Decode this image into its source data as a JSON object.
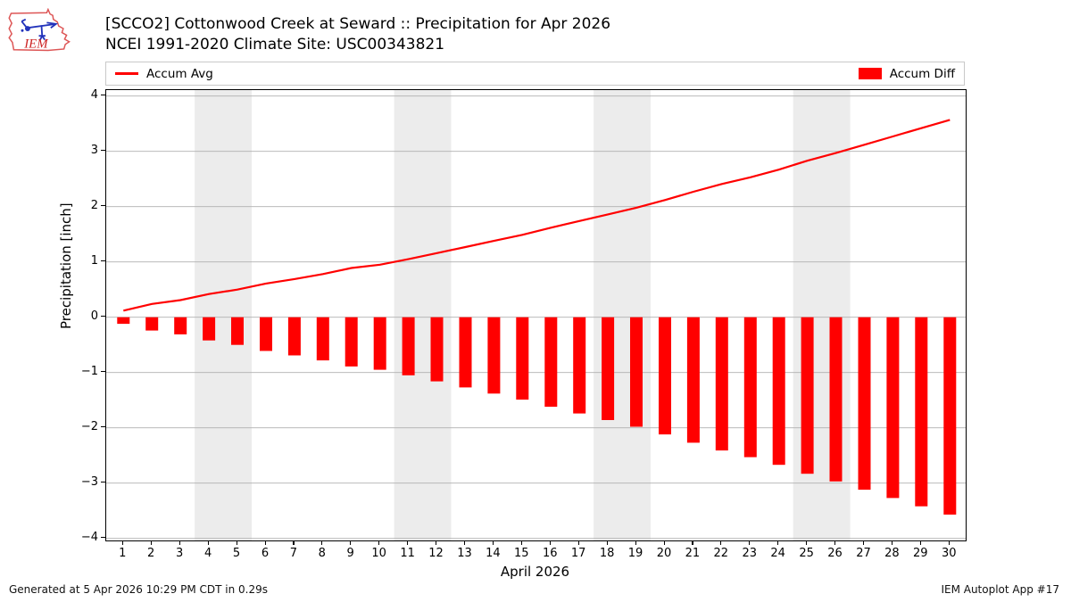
{
  "header": {
    "title_line1": "[SCCO2] Cottonwood Creek at Seward :: Precipitation for Apr 2026",
    "title_line2": "NCEI 1991-2020 Climate Site: USC00343821",
    "logo_text": "IEM"
  },
  "legend": {
    "avg_label": "Accum Avg",
    "diff_label": "Accum Diff"
  },
  "footer": {
    "left": "Generated at 5 Apr 2026 10:29 PM CDT in 0.29s",
    "right": "IEM Autoplot App #17"
  },
  "colors": {
    "series_red": "#ff0000",
    "weekend_band": "#ececec",
    "gridline": "#b0b0b0",
    "legend_border": "#c9c9c9",
    "logo_outline_red": "#dd5555",
    "logo_glyph_blue": "#2233bb",
    "logo_text_red": "#cc2222"
  },
  "chart_data": {
    "type": "line+bar",
    "title": "[SCCO2] Cottonwood Creek at Seward :: Precipitation for Apr 2026",
    "subtitle": "NCEI 1991-2020 Climate Site: USC00343821",
    "xlabel": "April 2026",
    "ylabel": "Precipitation [inch]",
    "x": [
      1,
      2,
      3,
      4,
      5,
      6,
      7,
      8,
      9,
      10,
      11,
      12,
      13,
      14,
      15,
      16,
      17,
      18,
      19,
      20,
      21,
      22,
      23,
      24,
      25,
      26,
      27,
      28,
      29,
      30
    ],
    "xticks": [
      1,
      2,
      3,
      4,
      5,
      6,
      7,
      8,
      9,
      10,
      11,
      12,
      13,
      14,
      15,
      16,
      17,
      18,
      19,
      20,
      21,
      22,
      23,
      24,
      25,
      26,
      27,
      28,
      29,
      30
    ],
    "yticks": [
      -4,
      -3,
      -2,
      -1,
      0,
      1,
      2,
      3,
      4
    ],
    "ylim": [
      -4.1,
      4.1
    ],
    "grid": true,
    "legend_position": "top, full-width box: Accum Avg left, Accum Diff right",
    "weekend_bands_day_ranges": [
      [
        3.5,
        5.5
      ],
      [
        10.5,
        12.5
      ],
      [
        17.5,
        19.5
      ],
      [
        24.5,
        26.5
      ]
    ],
    "series": [
      {
        "name": "Accum Avg",
        "type": "line",
        "color": "#ff0000",
        "values": [
          0.12,
          0.24,
          0.31,
          0.42,
          0.5,
          0.61,
          0.69,
          0.78,
          0.89,
          0.95,
          1.05,
          1.16,
          1.27,
          1.38,
          1.49,
          1.62,
          1.74,
          1.86,
          1.98,
          2.12,
          2.27,
          2.41,
          2.53,
          2.67,
          2.83,
          2.97,
          3.12,
          3.27,
          3.42,
          3.57
        ]
      },
      {
        "name": "Accum Diff",
        "type": "bar",
        "color": "#ff0000",
        "values": [
          -0.12,
          -0.24,
          -0.31,
          -0.42,
          -0.5,
          -0.61,
          -0.69,
          -0.78,
          -0.89,
          -0.95,
          -1.05,
          -1.16,
          -1.27,
          -1.38,
          -1.49,
          -1.62,
          -1.74,
          -1.86,
          -1.98,
          -2.12,
          -2.27,
          -2.41,
          -2.53,
          -2.67,
          -2.83,
          -2.97,
          -3.12,
          -3.27,
          -3.42,
          -3.57
        ]
      }
    ]
  }
}
